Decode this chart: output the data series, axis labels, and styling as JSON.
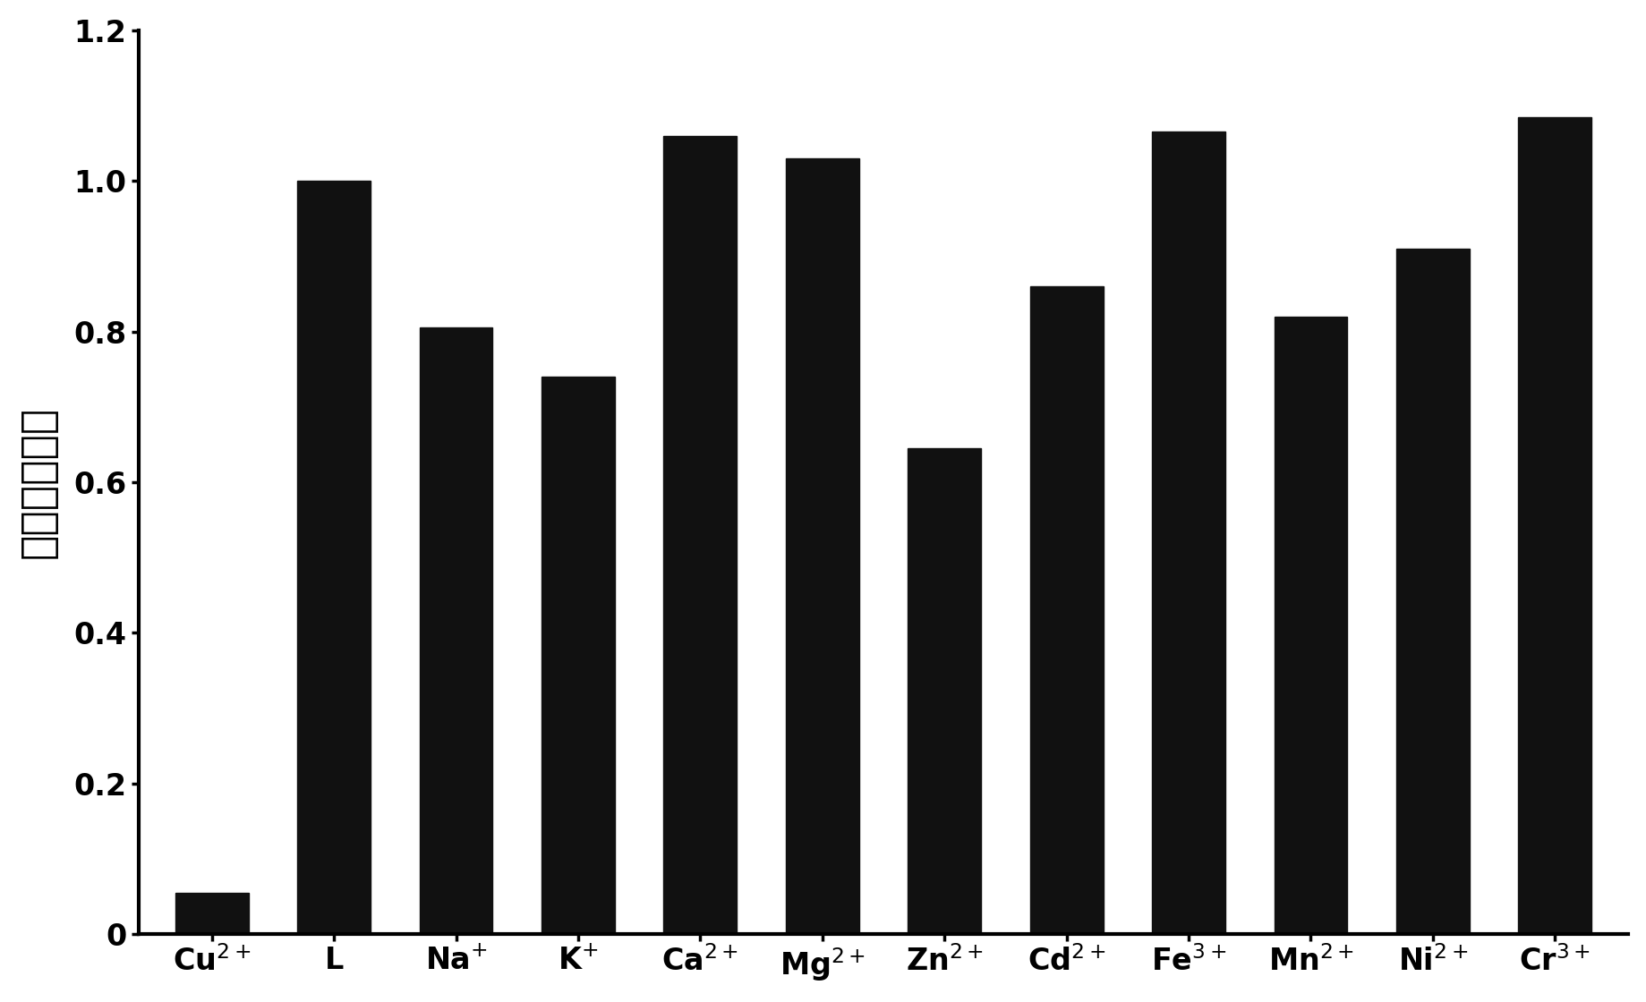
{
  "categories": [
    "Cu$^{2+}$",
    "L",
    "Na$^{+}$",
    "K$^{+}$",
    "Ca$^{2+}$",
    "Mg$^{2+}$",
    "Zn$^{2+}$",
    "Cd$^{2+}$",
    "Fe$^{3+}$",
    "Mn$^{2+}$",
    "Ni$^{2+}$",
    "Cr$^{3+}$"
  ],
  "values": [
    0.055,
    1.0,
    0.805,
    0.74,
    1.06,
    1.03,
    0.645,
    0.86,
    1.065,
    0.82,
    0.91,
    1.085
  ],
  "bar_color": "#111111",
  "background_color": "#ffffff",
  "ylabel": "相对药光强度",
  "ylim": [
    0,
    1.2
  ],
  "yticks": [
    0,
    0.2,
    0.4,
    0.6,
    0.8,
    1.0,
    1.2
  ],
  "bar_width": 0.6,
  "axis_fontsize": 30,
  "tick_fontsize": 24,
  "ylabel_fontsize": 34
}
